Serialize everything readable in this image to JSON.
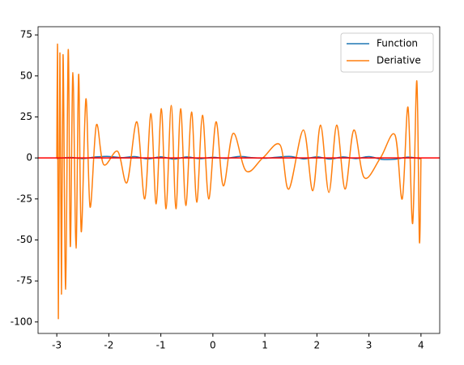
{
  "chart_data": {
    "type": "line",
    "xlim": [
      -3.36,
      4.36
    ],
    "ylim": [
      -107,
      80
    ],
    "xticks": [
      -3,
      -2,
      -1,
      0,
      1,
      2,
      3,
      4
    ],
    "yticks": [
      -100,
      -75,
      -50,
      -25,
      0,
      25,
      50,
      75
    ],
    "legend": "upper right",
    "hline": {
      "value": 0,
      "color": "#ff0000"
    },
    "series": [
      {
        "name": "Function",
        "color": "#1f77b4",
        "x": [
          -3,
          -2.75,
          -2.5,
          -2.25,
          -2,
          -1.75,
          -1.5,
          -1.25,
          -1,
          -0.75,
          -0.5,
          -0.25,
          0,
          0.25,
          0.5,
          0.75,
          1,
          1.25,
          1.5,
          1.75,
          2,
          2.25,
          2.5,
          2.75,
          3,
          3.25,
          3.5,
          3.75,
          4
        ],
        "values": [
          -0.5,
          0.3,
          -0.4,
          0.6,
          0.9,
          0.2,
          0.8,
          -0.6,
          0.7,
          -0.7,
          0.6,
          -0.5,
          0.4,
          -0.3,
          0.9,
          0.2,
          -0.2,
          0.5,
          0.9,
          -0.6,
          0.7,
          -0.7,
          0.6,
          -0.4,
          0.8,
          -0.9,
          -0.8,
          0.5,
          -0.5
        ]
      },
      {
        "name": "Deriative",
        "color": "#ff7f0e",
        "x": [
          -3.0,
          -2.985,
          -2.97,
          -2.94,
          -2.91,
          -2.88,
          -2.83,
          -2.78,
          -2.74,
          -2.69,
          -2.63,
          -2.58,
          -2.53,
          -2.44,
          -2.36,
          -2.24,
          -2.1,
          -1.83,
          -1.65,
          -1.46,
          -1.31,
          -1.19,
          -1.09,
          -0.99,
          -0.9,
          -0.8,
          -0.71,
          -0.62,
          -0.52,
          -0.41,
          -0.31,
          -0.2,
          -0.08,
          0.06,
          0.2,
          0.39,
          0.64,
          0.96,
          1.29,
          1.46,
          1.74,
          1.92,
          2.07,
          2.23,
          2.38,
          2.54,
          2.71,
          2.91,
          3.22,
          3.5,
          3.64,
          3.75,
          3.84,
          3.92,
          3.97,
          4.0
        ],
        "values": [
          0,
          67,
          -98,
          64,
          -83,
          63,
          -80,
          66,
          -54,
          52,
          -55,
          51,
          -45,
          36,
          -30,
          20,
          -4,
          4,
          -15,
          22,
          -25,
          27,
          -28,
          30,
          -31,
          32,
          -31,
          30,
          -29,
          28,
          -27,
          26,
          -25,
          22,
          -17,
          15,
          -8,
          0,
          8,
          -19,
          17,
          -20,
          20,
          -21,
          20,
          -19,
          17,
          -12,
          0,
          14,
          -25,
          31,
          -40,
          47,
          -51,
          0
        ]
      }
    ]
  }
}
